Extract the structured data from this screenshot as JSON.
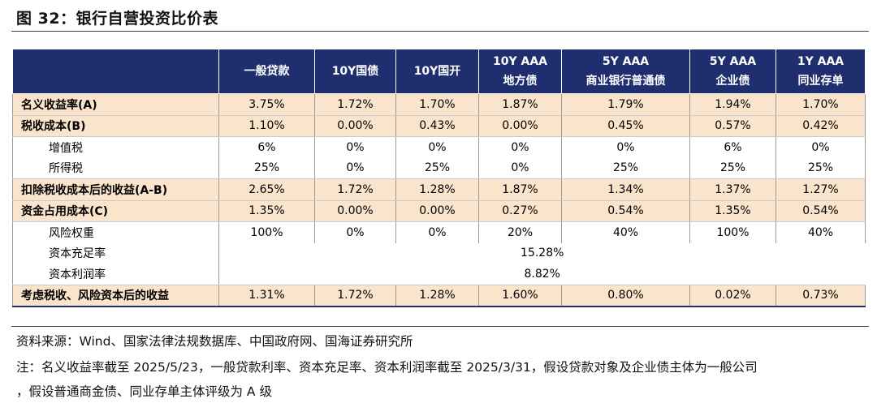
{
  "title": "图 32：银行自营投资比价表",
  "table": {
    "header": [
      {
        "line1": "",
        "line2": ""
      },
      {
        "line1": "一般贷款",
        "line2": ""
      },
      {
        "line1": "10Y国债",
        "line2": ""
      },
      {
        "line1": "10Y国开",
        "line2": ""
      },
      {
        "line1": "10Y AAA",
        "line2": "地方债"
      },
      {
        "line1": "5Y AAA",
        "line2": "商业银行普通债"
      },
      {
        "line1": "5Y AAA",
        "line2": "企业债"
      },
      {
        "line1": "1Y AAA",
        "line2": "同业存单"
      }
    ],
    "rows": [
      {
        "label": "名义收益率(A)",
        "values": [
          "3.75%",
          "1.72%",
          "1.70%",
          "1.87%",
          "1.79%",
          "1.94%",
          "1.70%"
        ]
      },
      {
        "label": "税收成本(B)",
        "values": [
          "1.10%",
          "0.00%",
          "0.43%",
          "0.00%",
          "0.45%",
          "0.57%",
          "0.42%"
        ]
      },
      {
        "label": "增值税",
        "values": [
          "6%",
          "0%",
          "0%",
          "0%",
          "0%",
          "6%",
          "0%"
        ]
      },
      {
        "label": "所得税",
        "values": [
          "25%",
          "0%",
          "25%",
          "0%",
          "25%",
          "25%",
          "25%"
        ]
      },
      {
        "label": "扣除税收成本后的收益(A-B)",
        "values": [
          "2.65%",
          "1.72%",
          "1.28%",
          "1.87%",
          "1.34%",
          "1.37%",
          "1.27%"
        ]
      },
      {
        "label": "资金占用成本(C)",
        "values": [
          "1.35%",
          "0.00%",
          "0.00%",
          "0.27%",
          "0.54%",
          "1.35%",
          "0.54%"
        ]
      },
      {
        "label": "风险权重",
        "values": [
          "100%",
          "0%",
          "0%",
          "20%",
          "40%",
          "100%",
          "40%"
        ]
      },
      {
        "label": "资本充足率",
        "value": "15.28%"
      },
      {
        "label": "资本利润率",
        "value": "8.82%"
      },
      {
        "label": "考虑税收、风险资本后的收益",
        "values": [
          "1.31%",
          "1.72%",
          "1.28%",
          "1.60%",
          "0.80%",
          "0.02%",
          "0.73%"
        ]
      }
    ]
  },
  "source": "资料来源：Wind、国家法律法规数据库、中国政府网、国海证券研究所",
  "note_line1": "注：名义收益率截至 2025/5/23，一般贷款利率、资本充足率、资本利润率截至 2025/3/31，假设贷款对象及企业债主体为一般公司",
  "note_line2": "，假设普通商金债、同业存单主体评级为 A 级"
}
